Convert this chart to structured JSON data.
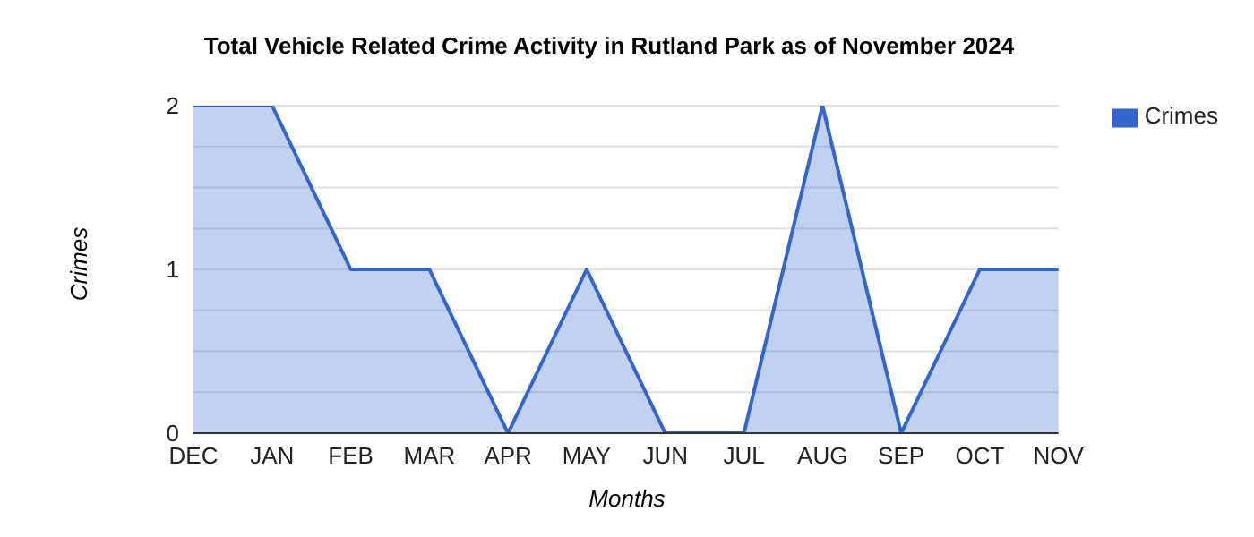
{
  "chart_data": {
    "type": "area",
    "title": "Total Vehicle Related Crime Activity in Rutland Park as of November 2024",
    "xlabel": "Months",
    "ylabel": "Crimes",
    "categories": [
      "DEC",
      "JAN",
      "FEB",
      "MAR",
      "APR",
      "MAY",
      "JUN",
      "JUL",
      "AUG",
      "SEP",
      "OCT",
      "NOV"
    ],
    "series": [
      {
        "name": "Crimes",
        "color": "#3366cc",
        "values": [
          2,
          2,
          1,
          1,
          0,
          1,
          0,
          0,
          2,
          0,
          1,
          1
        ]
      }
    ],
    "ylim": [
      0,
      2
    ],
    "yticks": [
      0,
      {
        "value": 0.25,
        "label": null
      },
      {
        "value": 0.5,
        "label": null
      },
      {
        "value": 0.75,
        "label": null
      },
      1,
      {
        "value": 1.25,
        "label": null
      },
      {
        "value": 1.5,
        "label": null
      },
      {
        "value": 1.75,
        "label": null
      },
      2
    ],
    "grid": "y",
    "legend": "top right",
    "marker": "none",
    "line_style": "solid"
  }
}
